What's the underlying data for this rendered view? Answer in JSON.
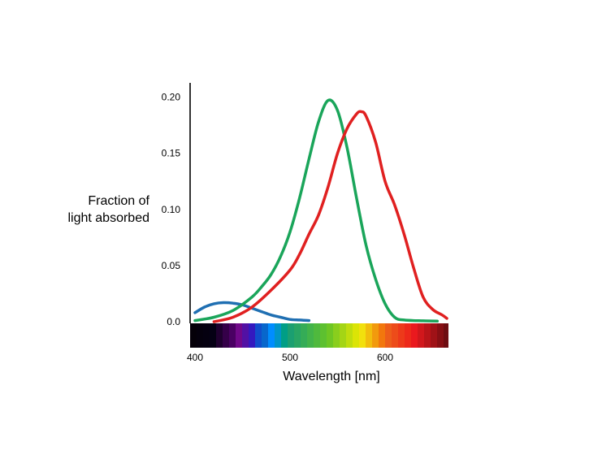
{
  "chart_data": {
    "type": "line",
    "ylabel_lines": [
      "Fraction of",
      "light absorbed"
    ],
    "xlabel": "Wavelength [nm]",
    "xlim": [
      395,
      665
    ],
    "ylim": [
      0,
      0.21
    ],
    "y_ticks": [
      0.0,
      0.05,
      0.1,
      0.15,
      0.2
    ],
    "y_tick_labels": [
      "0.0",
      "0.05",
      "0.10",
      "0.15",
      "0.20"
    ],
    "x_ticks": [
      400,
      500,
      600
    ],
    "x_tick_labels": [
      "400",
      "500",
      "600"
    ],
    "grid": false,
    "legend": "none",
    "spectrum_bar": true,
    "series": [
      {
        "color": "#1f6fb2",
        "x": [
          400,
          410,
          420,
          430,
          440,
          450,
          460,
          470,
          480,
          490,
          500,
          510,
          520
        ],
        "y": [
          0.008,
          0.013,
          0.016,
          0.017,
          0.0165,
          0.015,
          0.012,
          0.009,
          0.006,
          0.004,
          0.002,
          0.0015,
          0.001
        ]
      },
      {
        "color": "#1aa55a",
        "x": [
          400,
          420,
          440,
          460,
          470,
          480,
          490,
          500,
          510,
          520,
          530,
          540,
          550,
          560,
          570,
          580,
          590,
          600,
          610,
          620,
          640,
          655
        ],
        "y": [
          0.001,
          0.004,
          0.01,
          0.022,
          0.031,
          0.042,
          0.058,
          0.08,
          0.11,
          0.145,
          0.178,
          0.197,
          0.188,
          0.155,
          0.11,
          0.068,
          0.038,
          0.016,
          0.004,
          0.0015,
          0.0008,
          0.0005
        ]
      },
      {
        "color": "#e02020",
        "x": [
          420,
          440,
          460,
          480,
          500,
          510,
          520,
          530,
          540,
          550,
          560,
          570,
          575,
          580,
          590,
          600,
          610,
          620,
          630,
          640,
          650,
          660,
          665
        ],
        "y": [
          0.0,
          0.004,
          0.013,
          0.028,
          0.046,
          0.06,
          0.078,
          0.095,
          0.12,
          0.15,
          0.172,
          0.185,
          0.187,
          0.183,
          0.16,
          0.125,
          0.104,
          0.078,
          0.048,
          0.022,
          0.011,
          0.006,
          0.003
        ]
      }
    ]
  }
}
